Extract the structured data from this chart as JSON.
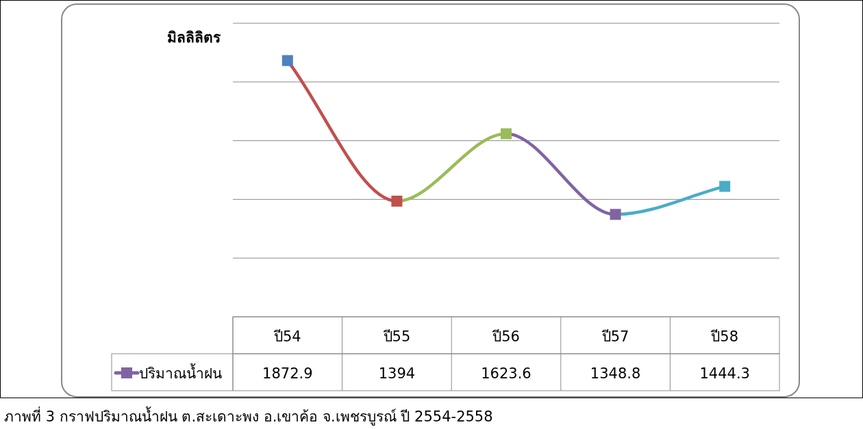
{
  "chart_data": {
    "type": "line",
    "ylabel": "มิลลิลิตร",
    "categories": [
      "ปี54",
      "ปี55",
      "ปี56",
      "ปี57",
      "ปี58"
    ],
    "series": [
      {
        "name": "ปริมาณน้ำฝน",
        "color": "#8064a2",
        "colors": [
          "#4f81bd",
          "#c0504d",
          "#9bbb59",
          "#8064a2",
          "#4bacc6"
        ],
        "values": [
          1872.9,
          1394,
          1623.6,
          1348.8,
          1444.3
        ]
      }
    ],
    "ylim": [
      1000,
      2000
    ],
    "yticks": [
      {
        "value": 1200,
        "label": null
      },
      {
        "value": 1400,
        "label": null
      },
      {
        "value": 1600,
        "label": null
      },
      {
        "value": 1800,
        "label": null
      },
      {
        "value": 2000,
        "label": null
      }
    ],
    "grid": "y",
    "marker": "square",
    "legend": "bottom",
    "data_labels": true,
    "annotations": [
      "ภาพที่ 3  กราฟปริมาณน้ำฝน ต.สะเดาะพง อ.เขาค้อ จ.เพชรบูรณ์ ปี 2554-2558"
    ]
  }
}
